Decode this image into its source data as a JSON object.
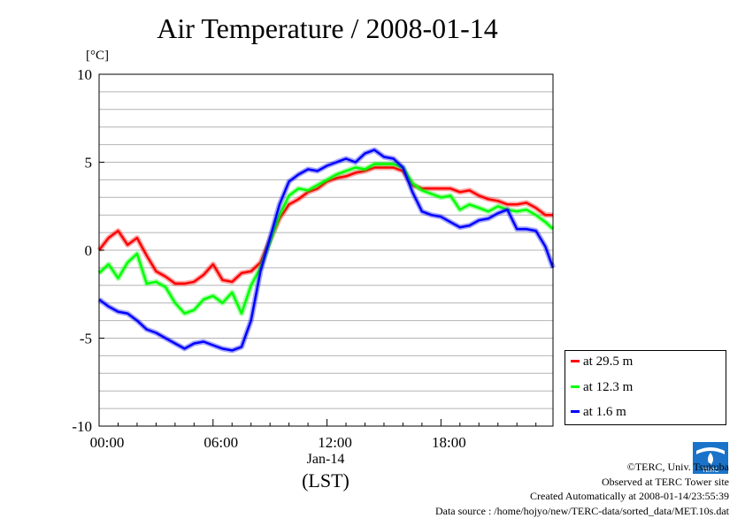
{
  "chart_data": {
    "type": "line",
    "title": "Air Temperature / 2008-01-14",
    "ylabel": "[°C]",
    "xlabel": "(LST)",
    "date_label": "Jan-14",
    "ylim": [
      -10,
      10
    ],
    "xlim": [
      0,
      23.9
    ],
    "yticks": [
      10,
      5,
      0,
      -5,
      -10
    ],
    "xticks": [
      {
        "value": 0,
        "label": "00:00"
      },
      {
        "value": 6,
        "label": "06:00"
      },
      {
        "value": 12,
        "label": "12:00"
      },
      {
        "value": 18,
        "label": "18:00"
      }
    ],
    "grid": true,
    "legend_position": "right-bottom",
    "series": [
      {
        "name": "at 29.5 m",
        "color": "#ff0000",
        "x": [
          0,
          0.5,
          1,
          1.5,
          2,
          2.5,
          3,
          3.5,
          4,
          4.5,
          5,
          5.5,
          6,
          6.5,
          7,
          7.5,
          8,
          8.5,
          9,
          9.5,
          10,
          10.5,
          11,
          11.5,
          12,
          12.5,
          13,
          13.5,
          14,
          14.5,
          15,
          15.5,
          16,
          16.5,
          17,
          17.5,
          18,
          18.5,
          19,
          19.5,
          20,
          20.5,
          21,
          21.5,
          22,
          22.5,
          23,
          23.5,
          23.9
        ],
        "y": [
          0,
          0.7,
          1.1,
          0.3,
          0.7,
          -0.3,
          -1.2,
          -1.5,
          -1.9,
          -1.9,
          -1.8,
          -1.4,
          -0.8,
          -1.7,
          -1.8,
          -1.3,
          -1.2,
          -0.7,
          0.6,
          1.8,
          2.6,
          2.9,
          3.3,
          3.5,
          3.9,
          4.1,
          4.2,
          4.4,
          4.5,
          4.7,
          4.7,
          4.7,
          4.5,
          3.7,
          3.5,
          3.5,
          3.5,
          3.5,
          3.3,
          3.4,
          3.1,
          2.9,
          2.8,
          2.6,
          2.6,
          2.7,
          2.4,
          2.0,
          2.0
        ]
      },
      {
        "name": "at 12.3 m",
        "color": "#00ff00",
        "x": [
          0,
          0.5,
          1,
          1.5,
          2,
          2.5,
          3,
          3.5,
          4,
          4.5,
          5,
          5.5,
          6,
          6.5,
          7,
          7.5,
          8,
          8.5,
          9,
          9.5,
          10,
          10.5,
          11,
          11.5,
          12,
          12.5,
          13,
          13.5,
          14,
          14.5,
          15,
          15.5,
          16,
          16.5,
          17,
          17.5,
          18,
          18.5,
          19,
          19.5,
          20,
          20.5,
          21,
          21.5,
          22,
          22.5,
          23,
          23.5,
          23.9
        ],
        "y": [
          -1.3,
          -0.8,
          -1.6,
          -0.7,
          -0.2,
          -1.9,
          -1.8,
          -2.1,
          -3.0,
          -3.6,
          -3.4,
          -2.8,
          -2.6,
          -3.0,
          -2.4,
          -3.6,
          -2.0,
          -1.0,
          0.5,
          2.0,
          3.1,
          3.5,
          3.4,
          3.7,
          4.0,
          4.3,
          4.5,
          4.7,
          4.6,
          4.9,
          4.9,
          4.9,
          4.7,
          3.8,
          3.4,
          3.2,
          3.0,
          3.1,
          2.3,
          2.6,
          2.4,
          2.2,
          2.5,
          2.3,
          2.2,
          2.3,
          2.0,
          1.6,
          1.2
        ]
      },
      {
        "name": "at 1.6 m",
        "color": "#0000ff",
        "x": [
          0,
          0.5,
          1,
          1.5,
          2,
          2.5,
          3,
          3.5,
          4,
          4.5,
          5,
          5.5,
          6,
          6.5,
          7,
          7.5,
          8,
          8.5,
          9,
          9.5,
          10,
          10.5,
          11,
          11.5,
          12,
          12.5,
          13,
          13.5,
          14,
          14.5,
          15,
          15.5,
          16,
          16.5,
          17,
          17.5,
          18,
          18.5,
          19,
          19.5,
          20,
          20.5,
          21,
          21.5,
          22,
          22.5,
          23,
          23.5,
          23.9
        ],
        "y": [
          -2.8,
          -3.2,
          -3.5,
          -3.6,
          -4.0,
          -4.5,
          -4.7,
          -5.0,
          -5.3,
          -5.6,
          -5.3,
          -5.2,
          -5.4,
          -5.6,
          -5.7,
          -5.5,
          -4.0,
          -1.2,
          0.7,
          2.6,
          3.9,
          4.3,
          4.6,
          4.5,
          4.8,
          5.0,
          5.2,
          5.0,
          5.5,
          5.7,
          5.3,
          5.2,
          4.7,
          3.3,
          2.2,
          2.0,
          1.9,
          1.6,
          1.3,
          1.4,
          1.7,
          1.8,
          2.1,
          2.3,
          1.2,
          1.2,
          1.1,
          0.2,
          -1.0
        ]
      }
    ]
  },
  "credits": {
    "copyright": "©TERC, Univ. Tsukuba",
    "observed": "Observed at TERC Tower site",
    "created": "Created Automatically at 2008-01-14/23:55:39",
    "source": "Data source : /home/hojyo/new/TERC-data/sorted_data/MET.10s.dat",
    "logo_text": "TERC"
  }
}
